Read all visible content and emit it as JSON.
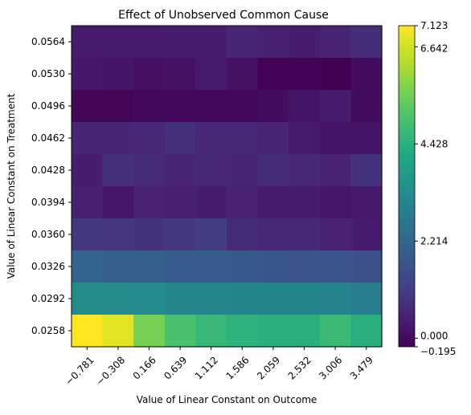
{
  "chart_data": {
    "type": "heatmap",
    "title": "Effect of Unobserved Common Cause",
    "xlabel": "Value of Linear Constant on Outcome",
    "ylabel": "Value of Linear Constant on Treatment",
    "x": [
      "−0.781",
      "−0.308",
      "0.166",
      "0.639",
      "1.112",
      "1.586",
      "2.059",
      "2.532",
      "3.006",
      "3.479"
    ],
    "y": [
      "0.0564",
      "0.0530",
      "0.0496",
      "0.0462",
      "0.0428",
      "0.0394",
      "0.0360",
      "0.0326",
      "0.0292",
      "0.0258"
    ],
    "values": [
      [
        0.35,
        0.35,
        0.35,
        0.4,
        0.4,
        0.55,
        0.45,
        0.4,
        0.5,
        0.75
      ],
      [
        0.25,
        0.2,
        0.1,
        0.15,
        0.35,
        0.15,
        -0.15,
        -0.15,
        -0.18,
        0.05
      ],
      [
        -0.1,
        -0.1,
        0.0,
        0.0,
        -0.05,
        0.0,
        0.05,
        0.2,
        0.4,
        0.05
      ],
      [
        0.55,
        0.55,
        0.6,
        0.8,
        0.6,
        0.6,
        0.55,
        0.35,
        0.2,
        0.2
      ],
      [
        0.4,
        0.8,
        0.7,
        0.55,
        0.6,
        0.55,
        0.75,
        0.6,
        0.5,
        0.85
      ],
      [
        0.45,
        0.25,
        0.5,
        0.45,
        0.4,
        0.5,
        0.35,
        0.4,
        0.25,
        0.3
      ],
      [
        0.95,
        0.9,
        0.85,
        0.95,
        1.1,
        0.7,
        0.6,
        0.6,
        0.5,
        0.4
      ],
      [
        2.15,
        2.1,
        2.05,
        1.95,
        1.9,
        1.85,
        1.75,
        1.65,
        1.65,
        1.6
      ],
      [
        3.3,
        3.3,
        3.25,
        3.15,
        3.15,
        3.1,
        3.1,
        3.1,
        3.05,
        2.9
      ],
      [
        7.12,
        6.8,
        5.6,
        5.0,
        4.65,
        4.5,
        4.4,
        4.4,
        4.7,
        4.4
      ]
    ],
    "vmin": -0.195,
    "vmax": 7.123,
    "colormap": "viridis",
    "colorbar_ticks": [
      "−0.195",
      "0.000",
      "2.214",
      "4.428",
      "6.642",
      "7.123"
    ],
    "colorbar_tick_values": [
      -0.195,
      0,
      2.214,
      4.428,
      6.642,
      7.123
    ],
    "grid": false
  }
}
